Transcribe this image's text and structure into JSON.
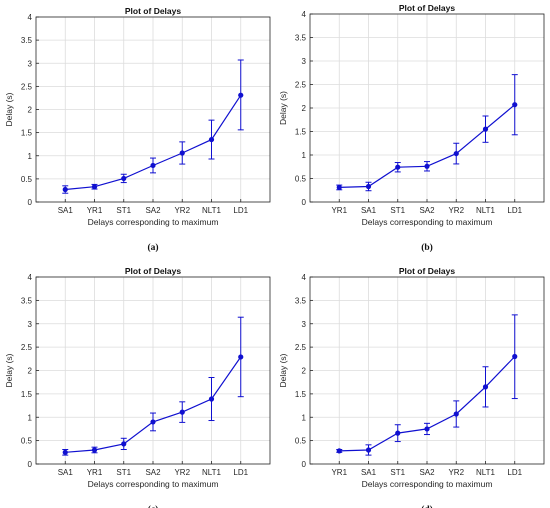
{
  "colors": {
    "series": "#1010d0",
    "axis": "#262626",
    "grid": "#dcdcdc"
  },
  "chart_data": [
    {
      "type": "line",
      "panel_label": "(a)",
      "title": "Plot of Delays",
      "xlabel": "Delays corresponding to maximum",
      "ylabel": "Delay (s)",
      "ylim": [
        0,
        4
      ],
      "yticks": [
        "0",
        "0.5",
        "1",
        "1.5",
        "2",
        "2.5",
        "3",
        "3.5",
        "4"
      ],
      "grid": true,
      "error_bars": true,
      "categories": [
        "SA1",
        "YR1",
        "ST1",
        "SA2",
        "YR2",
        "NLT1",
        "LD1"
      ],
      "values": [
        0.27,
        0.33,
        0.51,
        0.79,
        1.06,
        1.35,
        2.31
      ],
      "error_low": [
        0.19,
        0.28,
        0.42,
        0.63,
        0.82,
        0.93,
        1.56
      ],
      "error_high": [
        0.35,
        0.38,
        0.6,
        0.95,
        1.3,
        1.77,
        3.07
      ]
    },
    {
      "type": "line",
      "panel_label": "(b)",
      "title": "Plot of Delays",
      "xlabel": "Delays corresponding to maximum",
      "ylabel": "Delay (s)",
      "ylim": [
        0,
        4
      ],
      "yticks": [
        "0",
        "0.5",
        "1",
        "1.5",
        "2",
        "2.5",
        "3",
        "3.5",
        "4"
      ],
      "grid": true,
      "error_bars": true,
      "categories": [
        "YR1",
        "SA1",
        "ST1",
        "SA2",
        "YR2",
        "NLT1",
        "LD1"
      ],
      "values": [
        0.31,
        0.33,
        0.74,
        0.76,
        1.03,
        1.55,
        2.07
      ],
      "error_low": [
        0.26,
        0.24,
        0.64,
        0.66,
        0.81,
        1.27,
        1.43
      ],
      "error_high": [
        0.36,
        0.42,
        0.84,
        0.86,
        1.25,
        1.83,
        2.71
      ]
    },
    {
      "type": "line",
      "panel_label": "(c)",
      "title": "Plot of Delays",
      "xlabel": "Delays corresponding to maximum",
      "ylabel": "Delay (s)",
      "ylim": [
        0,
        4
      ],
      "yticks": [
        "0",
        "0.5",
        "1",
        "1.5",
        "2",
        "2.5",
        "3",
        "3.5",
        "4"
      ],
      "grid": true,
      "error_bars": true,
      "categories": [
        "SA1",
        "YR1",
        "ST1",
        "SA2",
        "YR2",
        "NLT1",
        "LD1"
      ],
      "values": [
        0.25,
        0.3,
        0.43,
        0.9,
        1.11,
        1.39,
        2.29
      ],
      "error_low": [
        0.19,
        0.24,
        0.31,
        0.71,
        0.89,
        0.93,
        1.44
      ],
      "error_high": [
        0.31,
        0.36,
        0.55,
        1.09,
        1.33,
        1.85,
        3.14
      ]
    },
    {
      "type": "line",
      "panel_label": "(d)",
      "title": "Plot of Delays",
      "xlabel": "Delays corresponding to maximum",
      "ylabel": "Delay (s)",
      "ylim": [
        0,
        4
      ],
      "yticks": [
        "0",
        "0.5",
        "1",
        "1.5",
        "2",
        "2.5",
        "3",
        "3.5",
        "4"
      ],
      "grid": true,
      "error_bars": true,
      "categories": [
        "YR1",
        "SA1",
        "ST1",
        "SA2",
        "YR2",
        "NLT1",
        "LD1"
      ],
      "values": [
        0.28,
        0.3,
        0.66,
        0.75,
        1.07,
        1.65,
        2.3
      ],
      "error_low": [
        0.25,
        0.19,
        0.48,
        0.63,
        0.79,
        1.22,
        1.4
      ],
      "error_high": [
        0.31,
        0.41,
        0.84,
        0.87,
        1.35,
        2.08,
        3.19
      ]
    }
  ]
}
